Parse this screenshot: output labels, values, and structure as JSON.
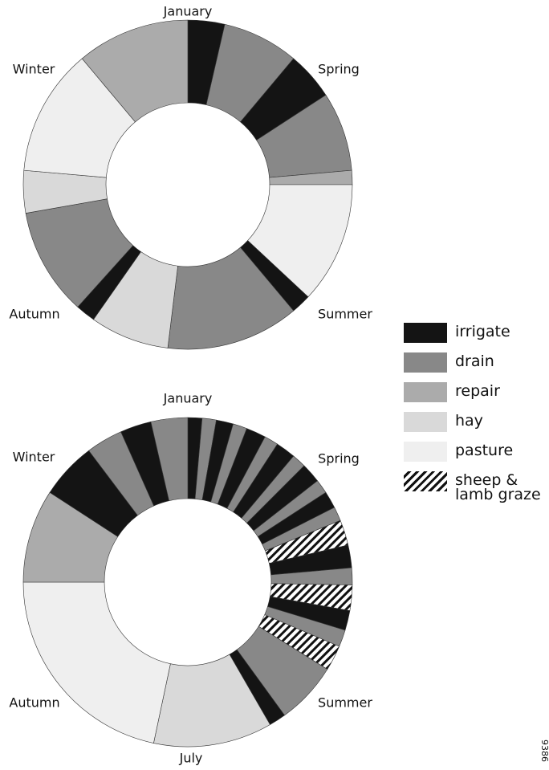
{
  "chart_data": [
    {
      "type": "donut",
      "labels": [
        "January",
        "Spring",
        "Summer",
        "Autumn",
        "Winter"
      ],
      "categories": [
        "irrigate",
        "drain",
        "irrigate",
        "drain",
        "repair",
        "pasture",
        "irrigate",
        "drain",
        "hay",
        "irrigate",
        "drain",
        "hay",
        "pasture",
        "repair"
      ],
      "values": [
        13,
        27,
        17,
        28,
        5,
        43,
        7,
        47,
        28,
        7,
        38,
        15,
        45,
        40
      ]
    },
    {
      "type": "donut",
      "labels": [
        "January",
        "Spring",
        "Summer",
        "Autumn",
        "Winter",
        "July"
      ],
      "categories": [
        "irrigate",
        "drain",
        "irrigate",
        "drain",
        "irrigate",
        "drain",
        "irrigate",
        "drain",
        "irrigate",
        "drain",
        "irrigate",
        "drain",
        "sheep & lamb graze",
        "irrigate",
        "drain",
        "sheep & lamb graze",
        "irrigate",
        "drain",
        "sheep & lamb graze",
        "drain",
        "irrigate",
        "hay",
        "pasture",
        "repair",
        "irrigate",
        "drain",
        "irrigate",
        "drain"
      ],
      "values": [
        5,
        5,
        6,
        5,
        7,
        5,
        7,
        5,
        7,
        5,
        6,
        5,
        9,
        8,
        6,
        9,
        7,
        6,
        9,
        22,
        6,
        42,
        78,
        33,
        20,
        13,
        11,
        13
      ]
    }
  ],
  "legend": [
    {
      "name": "irrigate",
      "color": "#141414"
    },
    {
      "name": "drain",
      "color": "#888888"
    },
    {
      "name": "repair",
      "color": "#ababab"
    },
    {
      "name": "hay",
      "color": "#d9d9d9"
    },
    {
      "name": "pasture",
      "color": "#efefef"
    },
    {
      "name": "sheep & lamb graze",
      "color": "hatch"
    }
  ],
  "figure_id": "9386"
}
